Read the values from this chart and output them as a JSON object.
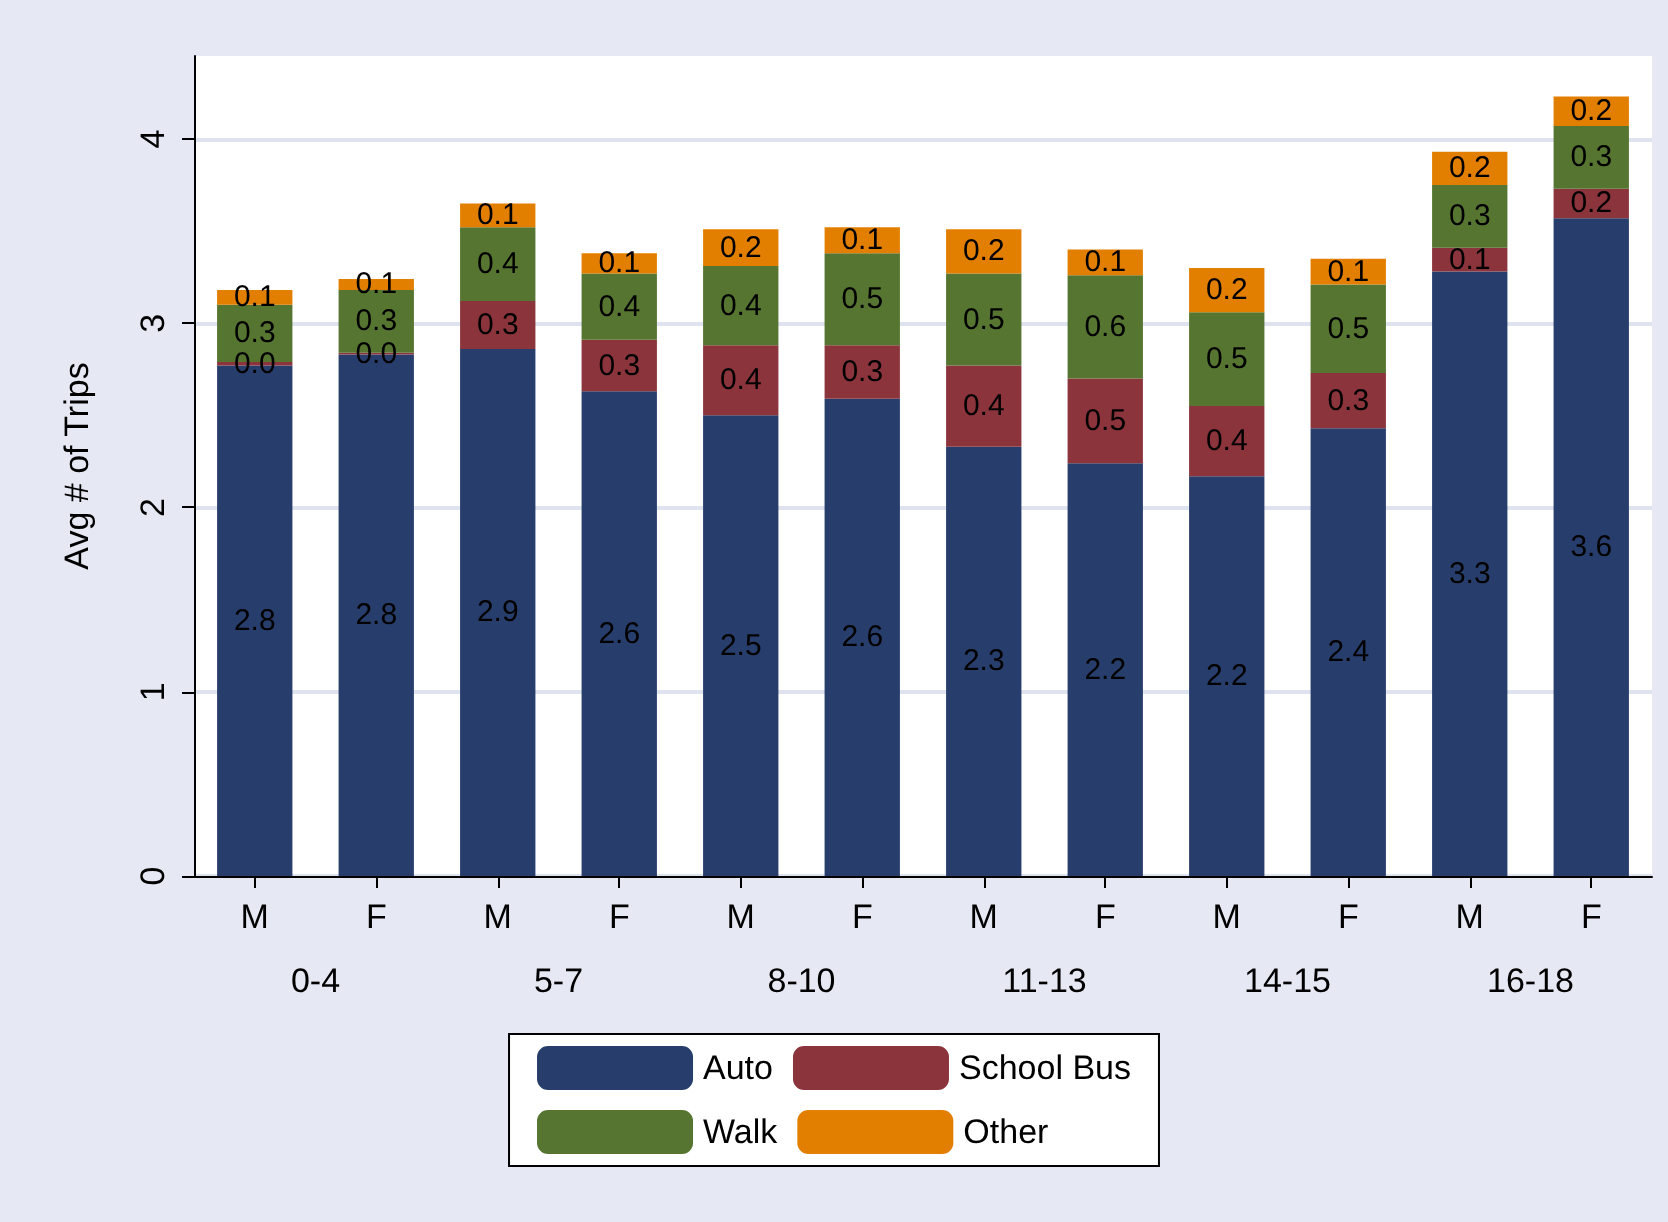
{
  "chart_data": {
    "type": "bar",
    "stacked": true,
    "ylabel": "Avg # of Trips",
    "categories": [
      "M",
      "F",
      "M",
      "F",
      "M",
      "F",
      "M",
      "F",
      "M",
      "F",
      "M",
      "F"
    ],
    "annotations": [
      "0-4",
      "5-7",
      "8-10",
      "11-13",
      "14-15",
      "16-18"
    ],
    "series": [
      {
        "name": "Auto",
        "color": "#273e6c",
        "values": [
          2.77,
          2.83,
          2.86,
          2.63,
          2.5,
          2.59,
          2.33,
          2.24,
          2.17,
          2.43,
          3.28,
          3.57
        ],
        "value_labels": [
          "2.8",
          "2.8",
          "2.9",
          "2.6",
          "2.5",
          "2.6",
          "2.3",
          "2.2",
          "2.2",
          "2.4",
          "3.3",
          "3.6"
        ]
      },
      {
        "name": "School Bus",
        "color": "#8b343c",
        "values": [
          0.02,
          0.01,
          0.26,
          0.28,
          0.38,
          0.29,
          0.44,
          0.46,
          0.38,
          0.3,
          0.13,
          0.16
        ],
        "value_labels": [
          "0.0",
          "0.0",
          "0.3",
          "0.3",
          "0.4",
          "0.3",
          "0.4",
          "0.5",
          "0.4",
          "0.3",
          "0.1",
          "0.2"
        ]
      },
      {
        "name": "Walk",
        "color": "#557530",
        "values": [
          0.31,
          0.34,
          0.4,
          0.36,
          0.43,
          0.5,
          0.5,
          0.56,
          0.51,
          0.48,
          0.34,
          0.34
        ],
        "value_labels": [
          "0.3",
          "0.3",
          "0.4",
          "0.4",
          "0.4",
          "0.5",
          "0.5",
          "0.6",
          "0.5",
          "0.5",
          "0.3",
          "0.3"
        ]
      },
      {
        "name": "Other",
        "color": "#e37f00",
        "values": [
          0.08,
          0.06,
          0.13,
          0.11,
          0.2,
          0.14,
          0.24,
          0.14,
          0.24,
          0.14,
          0.18,
          0.16
        ],
        "value_labels": [
          "0.1",
          "0.1",
          "0.1",
          "0.1",
          "0.2",
          "0.1",
          "0.2",
          "0.1",
          "0.2",
          "0.1",
          "0.2",
          "0.2"
        ]
      }
    ],
    "ylim": [
      0,
      4.45
    ],
    "yticks": [
      0,
      1,
      2,
      3,
      4
    ],
    "grid": "y",
    "legend": "bottom"
  }
}
